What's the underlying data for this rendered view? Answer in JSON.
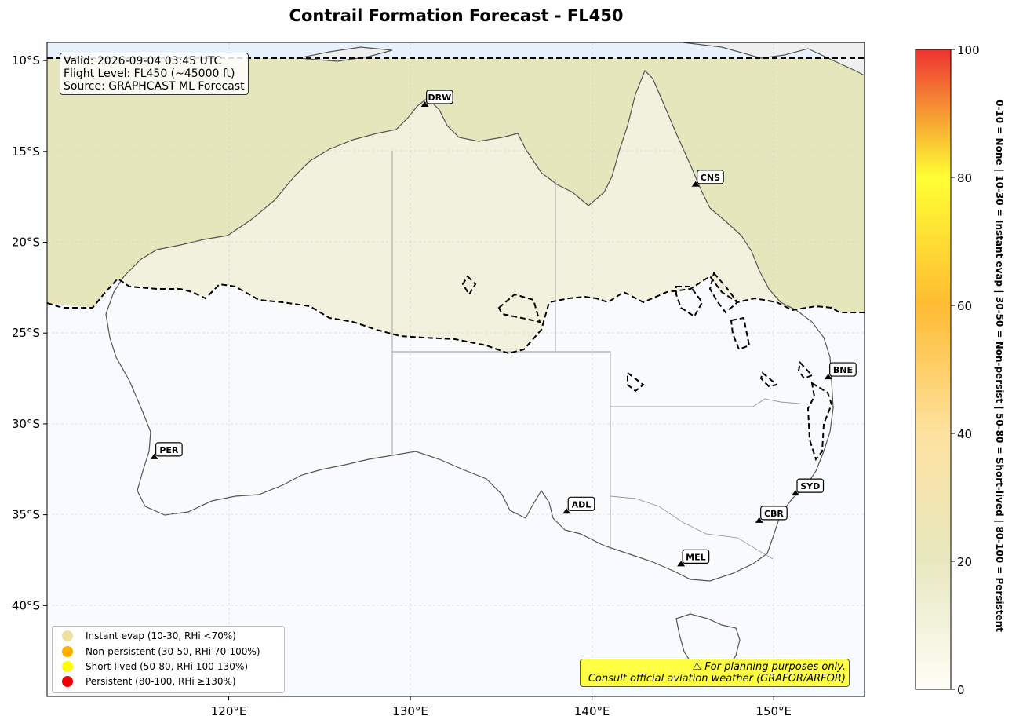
{
  "title": "Contrail Formation Forecast - FL450",
  "info": {
    "valid": "Valid: 2026-09-04 03:45 UTC",
    "flight_level": "Flight Level: FL450 (~45000 ft)",
    "source": "Source: GRAPHCAST ML Forecast"
  },
  "axes": {
    "lon_ticks": [
      {
        "value": 120,
        "label": "120°E"
      },
      {
        "value": 130,
        "label": "130°E"
      },
      {
        "value": 140,
        "label": "140°E"
      },
      {
        "value": 150,
        "label": "150°E"
      }
    ],
    "lat_ticks": [
      {
        "value": -10,
        "label": "10°S"
      },
      {
        "value": -15,
        "label": "15°S"
      },
      {
        "value": -20,
        "label": "20°S"
      },
      {
        "value": -25,
        "label": "25°S"
      },
      {
        "value": -30,
        "label": "30°S"
      },
      {
        "value": -35,
        "label": "35°S"
      },
      {
        "value": -40,
        "label": "40°S"
      }
    ],
    "lon_range": [
      110,
      155
    ],
    "lat_range": [
      -45,
      -9
    ]
  },
  "airports": [
    {
      "code": "DRW",
      "lon": 130.8,
      "lat": -12.5
    },
    {
      "code": "CNS",
      "lon": 145.7,
      "lat": -16.9
    },
    {
      "code": "BNE",
      "lon": 153.0,
      "lat": -27.5
    },
    {
      "code": "PER",
      "lon": 115.9,
      "lat": -31.9
    },
    {
      "code": "SYD",
      "lon": 151.2,
      "lat": -33.9
    },
    {
      "code": "CBR",
      "lon": 149.2,
      "lat": -35.4
    },
    {
      "code": "ADL",
      "lon": 138.6,
      "lat": -34.9
    },
    {
      "code": "MEL",
      "lon": 144.9,
      "lat": -37.8
    }
  ],
  "legend": [
    {
      "label": "Instant evap (10-30, RHi <70%)",
      "color": "#f0e0a0"
    },
    {
      "label": "Non-persistent (30-50, RHi 70-100%)",
      "color": "#ffb000"
    },
    {
      "label": "Short-lived (50-80, RHi 100-130%)",
      "color": "#ffff00"
    },
    {
      "label": "Persistent (80-100, RHi ≥130%)",
      "color": "#ee0000"
    }
  ],
  "disclaimer": {
    "line1": "⚠ For planning purposes only.",
    "line2": "Consult official aviation weather (GRAFOR/ARFOR)"
  },
  "colorbar": {
    "ticks": [
      0,
      20,
      40,
      60,
      80,
      100
    ],
    "label": "0-10 = None  |  10-30 = Instant evap  |  30-50 = Non-persist  |  50-80 = Short-lived  |  80-100 = Persistent"
  }
}
